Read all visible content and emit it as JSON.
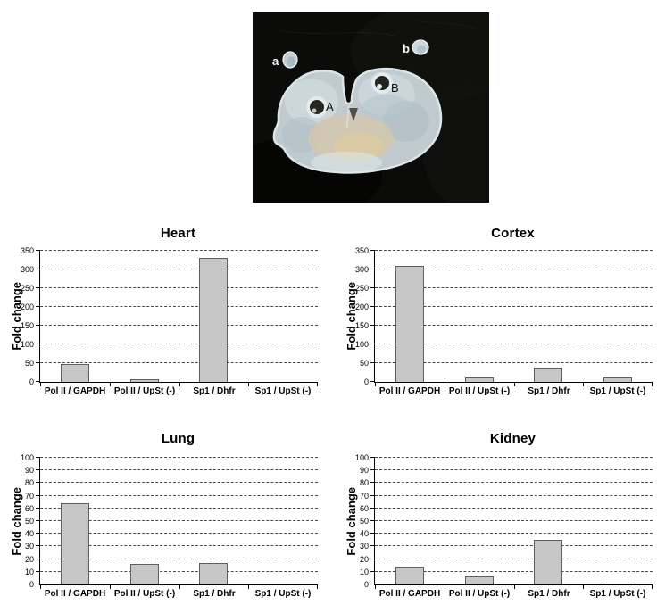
{
  "figure_type": "scientific-figure",
  "photo": {
    "panel": "coronal-brain-section-on-black-background",
    "labels": {
      "label_a": "a",
      "label_b": "b",
      "label_A": "A",
      "label_B": "B"
    }
  },
  "chart_data": [
    {
      "type": "bar",
      "title": "Heart",
      "ylabel": "Fold change",
      "xlabel": "",
      "categories": [
        "Pol II / GAPDH",
        "Pol II / UpSt (-)",
        "Sp1 / Dhfr",
        "Sp1 / UpSt (-)"
      ],
      "values": [
        48,
        6,
        330,
        0
      ],
      "ylim": [
        0,
        350
      ],
      "ystep": 50,
      "grid": "dashed-horizontal",
      "legend": "none",
      "bar_color": "#c7c7c7",
      "bar_border_color": "#5e5e5e"
    },
    {
      "type": "bar",
      "title": "Cortex",
      "ylabel": "Fold change",
      "xlabel": "",
      "categories": [
        "Pol II / GAPDH",
        "Pol II / UpSt (-)",
        "Sp1 / Dhfr",
        "Sp1 / UpSt (-)"
      ],
      "values": [
        310,
        12,
        38,
        12
      ],
      "ylim": [
        0,
        350
      ],
      "ystep": 50,
      "grid": "dashed-horizontal",
      "legend": "none",
      "bar_color": "#c7c7c7",
      "bar_border_color": "#5e5e5e"
    },
    {
      "type": "bar",
      "title": "Lung",
      "ylabel": "Fold change",
      "xlabel": "",
      "categories": [
        "Pol II / GAPDH",
        "Pol II / UpSt (-)",
        "Sp1 / Dhfr",
        "Sp1 / UpSt (-)"
      ],
      "values": [
        64,
        16,
        17,
        0
      ],
      "ylim": [
        0,
        100
      ],
      "ystep": 10,
      "grid": "dashed-horizontal",
      "legend": "none",
      "bar_color": "#c7c7c7",
      "bar_border_color": "#5e5e5e"
    },
    {
      "type": "bar",
      "title": "Kidney",
      "ylabel": "Fold change",
      "xlabel": "",
      "categories": [
        "Pol II / GAPDH",
        "Pol II / UpSt (-)",
        "Sp1 / Dhfr",
        "Sp1 / UpSt (-)"
      ],
      "values": [
        14,
        6,
        35,
        1
      ],
      "ylim": [
        0,
        100
      ],
      "ystep": 10,
      "grid": "dashed-horizontal",
      "legend": "none",
      "bar_color": "#c7c7c7",
      "bar_border_color": "#5e5e5e"
    }
  ]
}
